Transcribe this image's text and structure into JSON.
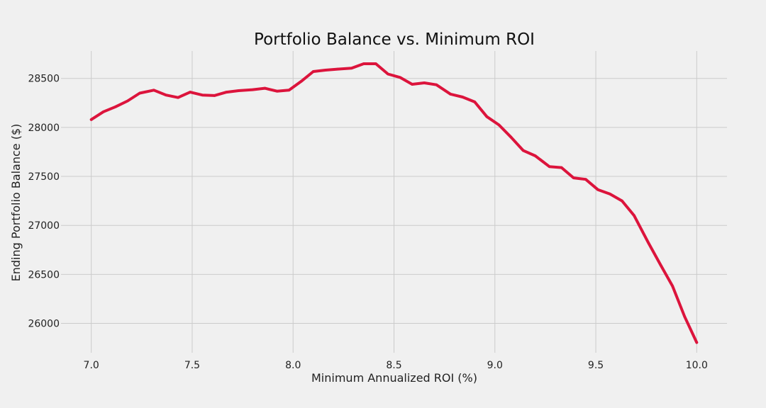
{
  "chart_data": {
    "type": "line",
    "title": "Portfolio Balance vs. Minimum ROI",
    "xlabel": "Minimum Annualized ROI (%)",
    "ylabel": "Ending Portfolio Balance ($)",
    "xlim": [
      6.85,
      10.15
    ],
    "ylim": [
      25700,
      28780
    ],
    "xticks": [
      7.0,
      7.5,
      8.0,
      8.5,
      9.0,
      9.5,
      10.0
    ],
    "xtick_labels": [
      "7.0",
      "7.5",
      "8.0",
      "8.5",
      "9.0",
      "9.5",
      "10.0"
    ],
    "yticks": [
      26000,
      26500,
      27000,
      27500,
      28000,
      28500
    ],
    "ytick_labels": [
      "26000",
      "26500",
      "27000",
      "27500",
      "28000",
      "28500"
    ],
    "grid": true,
    "legend": "none",
    "series": [
      {
        "color": "#dc143c",
        "x": [
          7.0,
          7.06,
          7.12,
          7.18,
          7.24,
          7.31,
          7.37,
          7.43,
          7.49,
          7.55,
          7.61,
          7.67,
          7.73,
          7.8,
          7.86,
          7.92,
          7.98,
          8.04,
          8.1,
          8.16,
          8.22,
          8.29,
          8.35,
          8.41,
          8.47,
          8.53,
          8.59,
          8.65,
          8.71,
          8.78,
          8.84,
          8.9,
          8.96,
          9.02,
          9.08,
          9.14,
          9.2,
          9.27,
          9.33,
          9.39,
          9.45,
          9.51,
          9.57,
          9.63,
          9.69,
          9.76,
          9.82,
          9.88,
          9.94,
          10.0
        ],
        "y": [
          28080,
          28160,
          28210,
          28270,
          28350,
          28380,
          28330,
          28305,
          28360,
          28330,
          28325,
          28360,
          28375,
          28385,
          28400,
          28370,
          28380,
          28470,
          28570,
          28585,
          28595,
          28605,
          28650,
          28650,
          28545,
          28510,
          28440,
          28455,
          28435,
          28340,
          28310,
          28260,
          28110,
          28025,
          27900,
          27765,
          27710,
          27600,
          27590,
          27485,
          27470,
          27365,
          27320,
          27250,
          27100,
          26825,
          26600,
          26380,
          26070,
          25805
        ]
      }
    ]
  }
}
